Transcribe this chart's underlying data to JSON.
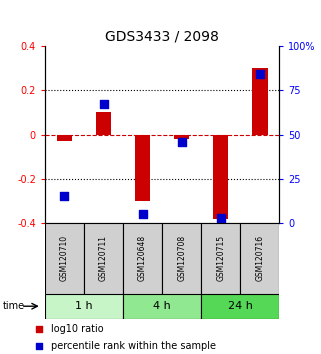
{
  "title": "GDS3433 / 2098",
  "samples": [
    "GSM120710",
    "GSM120711",
    "GSM120648",
    "GSM120708",
    "GSM120715",
    "GSM120716"
  ],
  "log10_ratio": [
    -0.03,
    0.1,
    -0.3,
    -0.02,
    -0.38,
    0.3
  ],
  "percentile_rank": [
    15,
    67,
    5,
    46,
    3,
    84
  ],
  "time_groups": [
    {
      "label": "1 h",
      "start": 0,
      "end": 2,
      "color": "#c8f5c8"
    },
    {
      "label": "4 h",
      "start": 2,
      "end": 4,
      "color": "#90e890"
    },
    {
      "label": "24 h",
      "start": 4,
      "end": 6,
      "color": "#55d855"
    }
  ],
  "ylim": [
    -0.4,
    0.4
  ],
  "yticks_left": [
    -0.4,
    -0.2,
    0.0,
    0.2,
    0.4
  ],
  "yticks_right": [
    0,
    25,
    50,
    75,
    100
  ],
  "bar_color": "#cc0000",
  "dot_color": "#0000cc",
  "zero_line_color": "#cc0000",
  "grid_color": "#000000",
  "bar_width": 0.4,
  "dot_size": 40,
  "label_bg_color": "#d0d0d0",
  "title_fontsize": 10,
  "tick_fontsize": 7,
  "sample_fontsize": 5.5,
  "time_fontsize": 8,
  "legend_fontsize": 7
}
